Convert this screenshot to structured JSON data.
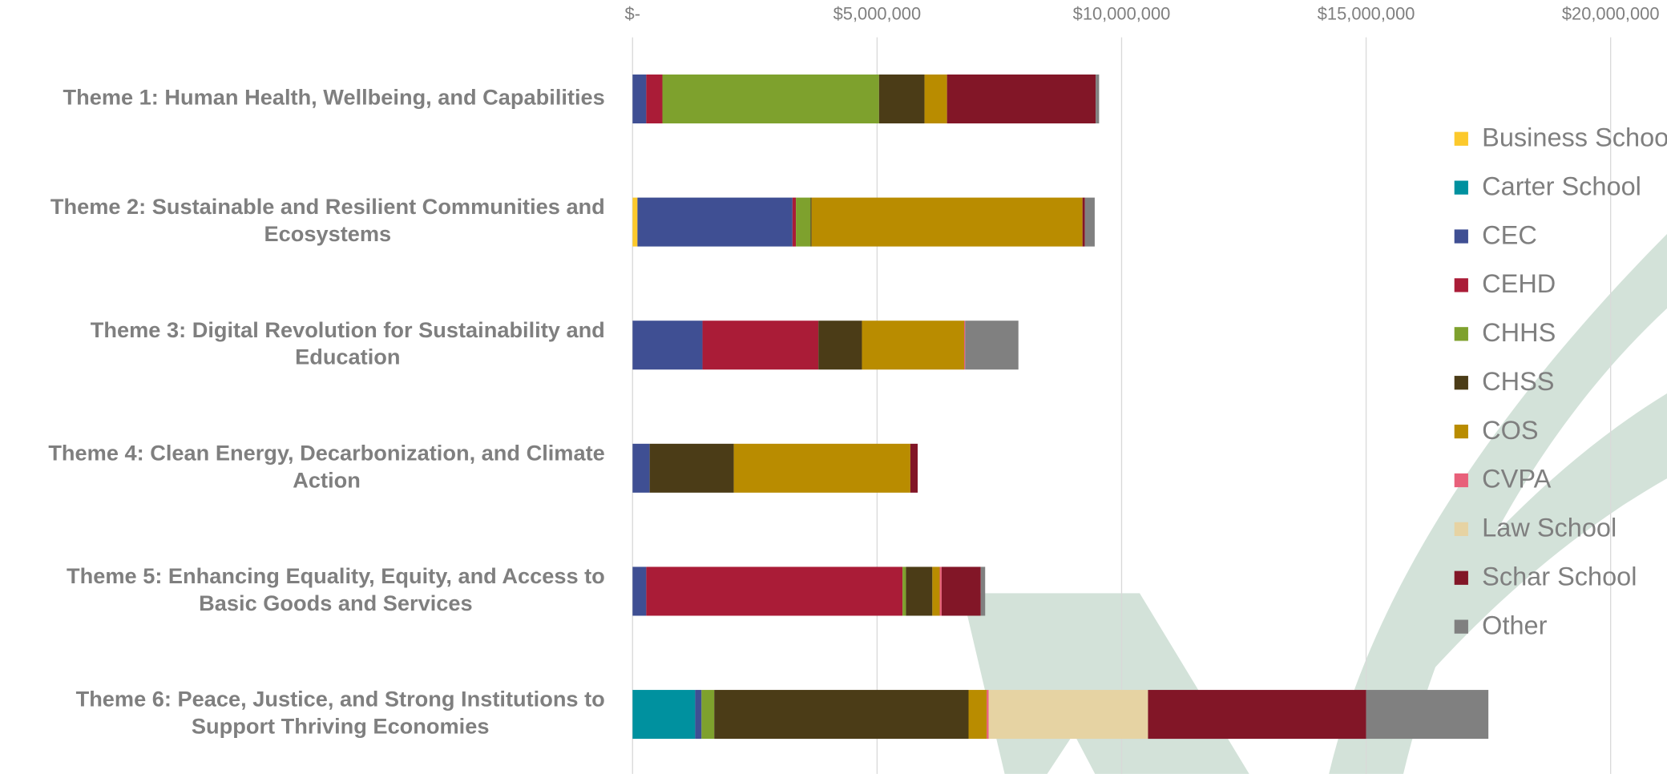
{
  "chart_data": {
    "type": "stacked-bar-horizontal",
    "categories": [
      "Theme 1: Human Health, Wellbeing, and Capabilities",
      "Theme 2: Sustainable and Resilient Communities and Ecosystems",
      "Theme 3: Digital Revolution for Sustainability and Education",
      "Theme 4: Clean Energy, Decarbonization, and Climate Action",
      "Theme 5: Enhancing Equality, Equity, and Access to Basic Goods and Services",
      "Theme 6: Peace, Justice, and Strong Institutions to Support Thriving Economies"
    ],
    "series": [
      {
        "name": "Business School",
        "color": "#fcc92c",
        "values": [
          0,
          100000,
          0,
          0,
          0,
          0
        ]
      },
      {
        "name": "Carter School",
        "color": "#00919f",
        "values": [
          0,
          0,
          0,
          0,
          0,
          1280000
        ]
      },
      {
        "name": "CEC",
        "color": "#3f4f93",
        "values": [
          280000,
          3170000,
          1430000,
          350000,
          280000,
          130000
        ]
      },
      {
        "name": "CEHD",
        "color": "#aa1c37",
        "values": [
          330000,
          70000,
          2370000,
          0,
          5240000,
          0
        ]
      },
      {
        "name": "CHHS",
        "color": "#7ea12d",
        "values": [
          4430000,
          300000,
          0,
          0,
          70000,
          260000
        ]
      },
      {
        "name": "CHSS",
        "color": "#4b3c17",
        "values": [
          930000,
          20000,
          890000,
          1720000,
          540000,
          5200000
        ]
      },
      {
        "name": "COS",
        "color": "#b98c00",
        "values": [
          460000,
          5540000,
          2090000,
          3610000,
          150000,
          370000
        ]
      },
      {
        "name": "CVPA",
        "color": "#e8607a",
        "values": [
          0,
          0,
          20000,
          0,
          40000,
          40000
        ]
      },
      {
        "name": "Law School",
        "color": "#e6d3a3",
        "values": [
          0,
          0,
          0,
          0,
          0,
          3260000
        ]
      },
      {
        "name": "Schar School",
        "color": "#821627",
        "values": [
          3040000,
          50000,
          0,
          150000,
          800000,
          4460000
        ]
      },
      {
        "name": "Other",
        "color": "#808080",
        "values": [
          70000,
          200000,
          1090000,
          0,
          90000,
          2500000
        ]
      }
    ],
    "xlim": [
      0,
      20000000
    ],
    "xticks": [
      {
        "value": 0,
        "label": "$-"
      },
      {
        "value": 5000000,
        "label": "$5,000,000"
      },
      {
        "value": 10000000,
        "label": "$10,000,000"
      },
      {
        "value": 15000000,
        "label": "$15,000,000"
      },
      {
        "value": 20000000,
        "label": "$20,000,000"
      }
    ],
    "grid": true,
    "legend": "right"
  }
}
